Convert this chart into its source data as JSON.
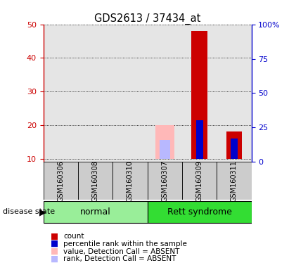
{
  "title": "GDS2613 / 37434_at",
  "samples": [
    "GSM160306",
    "GSM160308",
    "GSM160310",
    "GSM160307",
    "GSM160309",
    "GSM160311"
  ],
  "groups": [
    "normal",
    "normal",
    "normal",
    "Rett syndrome",
    "Rett syndrome",
    "Rett syndrome"
  ],
  "ylim_left": [
    9,
    50
  ],
  "ylim_right": [
    0,
    100
  ],
  "yticks_left": [
    10,
    20,
    30,
    40,
    50
  ],
  "yticks_right": [
    0,
    25,
    50,
    75,
    100
  ],
  "ytick_labels_left": [
    "10",
    "20",
    "30",
    "40",
    "50"
  ],
  "ytick_labels_right": [
    "0",
    "25",
    "50",
    "75",
    "100%"
  ],
  "count_values": [
    0,
    0,
    0,
    0,
    48,
    18
  ],
  "percentile_values": [
    0,
    0,
    0,
    0,
    21.5,
    16
  ],
  "value_absent": [
    0,
    0,
    0,
    20,
    0,
    0
  ],
  "rank_absent": [
    0,
    0,
    0,
    15.5,
    0,
    0
  ],
  "color_count": "#cc0000",
  "color_percentile": "#0000cc",
  "color_value_absent": "#ffb8b8",
  "color_rank_absent": "#b8b8ff",
  "normal_color": "#99ee99",
  "rett_color": "#33dd33",
  "group_label": "disease state",
  "legend_items": [
    {
      "label": "count",
      "color": "#cc0000"
    },
    {
      "label": "percentile rank within the sample",
      "color": "#0000cc"
    },
    {
      "label": "value, Detection Call = ABSENT",
      "color": "#ffb8b8"
    },
    {
      "label": "rank, Detection Call = ABSENT",
      "color": "#b8b8ff"
    }
  ]
}
